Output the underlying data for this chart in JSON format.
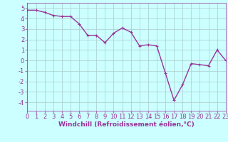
{
  "x": [
    0,
    1,
    2,
    3,
    4,
    5,
    6,
    7,
    8,
    9,
    10,
    11,
    12,
    13,
    14,
    15,
    16,
    17,
    18,
    19,
    20,
    21,
    22,
    23
  ],
  "y": [
    4.8,
    4.8,
    4.6,
    4.3,
    4.2,
    4.2,
    3.5,
    2.4,
    2.4,
    1.7,
    2.6,
    3.1,
    2.7,
    1.4,
    1.5,
    1.4,
    -1.2,
    -3.8,
    -2.3,
    -0.3,
    -0.4,
    -0.5,
    1.0,
    0.0
  ],
  "line_color": "#993399",
  "marker": "+",
  "marker_size": 3,
  "bg_color": "#ccffff",
  "grid_color": "#aacccc",
  "xlabel": "Windchill (Refroidissement éolien,°C)",
  "xlabel_color": "#993399",
  "tick_color": "#993399",
  "spine_color": "#993399",
  "ylim": [
    -4.8,
    5.5
  ],
  "xlim": [
    0,
    23
  ],
  "yticks": [
    -4,
    -3,
    -2,
    -1,
    0,
    1,
    2,
    3,
    4,
    5
  ],
  "xticks": [
    0,
    1,
    2,
    3,
    4,
    5,
    6,
    7,
    8,
    9,
    10,
    11,
    12,
    13,
    14,
    15,
    16,
    17,
    18,
    19,
    20,
    21,
    22,
    23
  ],
  "line_width": 1.0,
  "tick_fontsize": 6.0,
  "xlabel_fontsize": 6.5
}
